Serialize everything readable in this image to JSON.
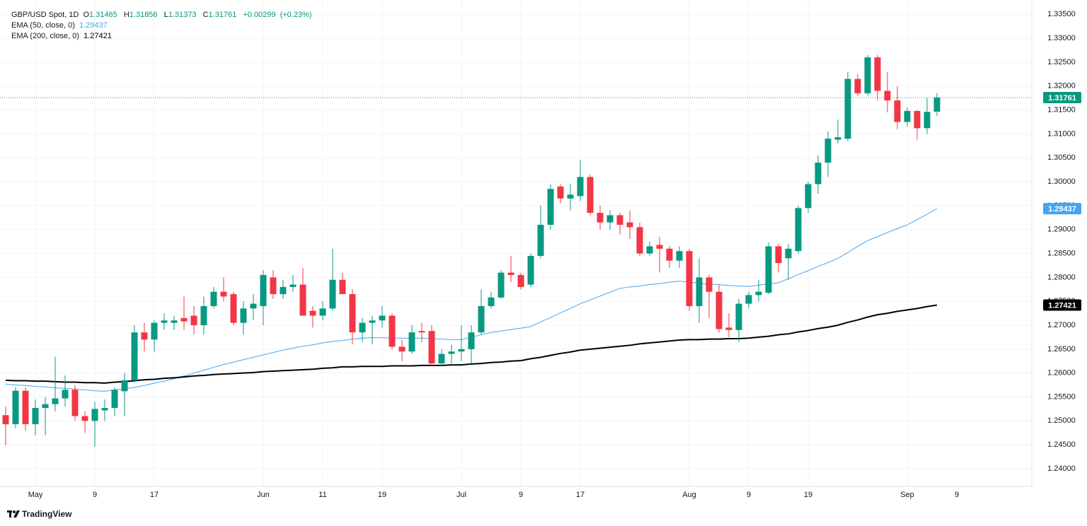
{
  "chart_data": {
    "type": "candlestick",
    "title": "GBP/USD Spot, 1D",
    "ohlc_letters": [
      "O",
      "H",
      "L",
      "C"
    ],
    "change": "+0.00299",
    "change_pct": "(+0.23%)",
    "logo": "TradingView",
    "up_color": "#089981",
    "down_color": "#f23645",
    "grid": true,
    "categories": [
      null,
      null,
      null,
      "May",
      null,
      null,
      null,
      null,
      null,
      "9",
      null,
      null,
      null,
      null,
      null,
      "17",
      null,
      null,
      null,
      null,
      null,
      null,
      null,
      null,
      null,
      null,
      "Jun",
      null,
      null,
      null,
      null,
      null,
      "11",
      null,
      null,
      null,
      null,
      null,
      "19",
      null,
      null,
      null,
      null,
      null,
      null,
      null,
      "Jul",
      null,
      null,
      null,
      null,
      null,
      "9",
      null,
      null,
      null,
      null,
      null,
      "17",
      null,
      null,
      null,
      null,
      null,
      null,
      null,
      null,
      null,
      null,
      "Aug",
      null,
      null,
      null,
      null,
      null,
      "9",
      null,
      null,
      null,
      null,
      null,
      "19",
      null,
      null,
      null,
      null,
      null,
      null,
      null,
      null,
      null,
      "Sep",
      null,
      null,
      null
    ],
    "future_categories": [
      null,
      "9"
    ],
    "open": [
      1.2512,
      1.2493,
      1.2563,
      1.2493,
      1.2527,
      1.2535,
      1.2547,
      1.2565,
      1.251,
      1.25,
      1.2522,
      1.2527,
      1.2562,
      1.2585,
      1.2685,
      1.267,
      1.2705,
      1.2705,
      1.2715,
      1.272,
      1.27,
      1.274,
      1.277,
      1.2765,
      1.2705,
      1.2735,
      1.274,
      1.28,
      1.2765,
      1.278,
      1.2785,
      1.273,
      1.272,
      1.2735,
      1.2795,
      1.2765,
      1.2685,
      1.2705,
      1.271,
      1.272,
      1.2655,
      1.2645,
      1.2688,
      1.2688,
      1.262,
      1.264,
      1.2645,
      1.265,
      1.2685,
      1.274,
      1.2758,
      1.281,
      1.2805,
      1.2785,
      1.2845,
      1.291,
      1.299,
      1.2965,
      1.297,
      1.301,
      1.2935,
      1.2915,
      1.293,
      1.2915,
      1.2905,
      1.285,
      1.2868,
      1.286,
      1.2835,
      1.2855,
      1.274,
      1.28,
      1.277,
      1.2695,
      1.269,
      1.2745,
      1.2763,
      1.2768,
      1.2865,
      1.284,
      1.2855,
      1.2945,
      1.2995,
      1.304,
      1.3088,
      1.309,
      1.3215,
      1.3185,
      1.326,
      1.319,
      1.317,
      1.3125,
      1.3148,
      1.3112,
      1.31465
    ],
    "high": [
      1.253,
      1.257,
      1.257,
      1.2545,
      1.255,
      1.2634,
      1.2595,
      1.2575,
      1.252,
      1.254,
      1.2545,
      1.257,
      1.26,
      1.27,
      1.2705,
      1.271,
      1.2725,
      1.272,
      1.276,
      1.274,
      1.276,
      1.278,
      1.28,
      1.277,
      1.275,
      1.2765,
      1.2815,
      1.2815,
      1.2795,
      1.2805,
      1.282,
      1.274,
      1.275,
      1.286,
      1.281,
      1.2775,
      1.2715,
      1.272,
      1.274,
      1.2725,
      1.267,
      1.27,
      1.2705,
      1.27,
      1.265,
      1.266,
      1.27,
      1.27,
      1.2775,
      1.277,
      1.2815,
      1.2845,
      1.281,
      1.285,
      1.295,
      1.2995,
      1.2995,
      1.2995,
      1.3045,
      1.3015,
      1.295,
      1.294,
      1.2935,
      1.294,
      1.2915,
      1.2875,
      1.2885,
      1.2865,
      1.2865,
      1.286,
      1.284,
      1.2805,
      1.2785,
      1.2725,
      1.2755,
      1.277,
      1.2795,
      1.2873,
      1.287,
      1.287,
      1.295,
      1.3,
      1.3055,
      1.3105,
      1.313,
      1.323,
      1.3225,
      1.3265,
      1.3265,
      1.323,
      1.32,
      1.3155,
      1.315,
      1.3175,
      1.31856
    ],
    "low": [
      1.2449,
      1.2485,
      1.248,
      1.247,
      1.247,
      1.252,
      1.253,
      1.25,
      1.2475,
      1.2446,
      1.25,
      1.251,
      1.251,
      1.258,
      1.2645,
      1.2645,
      1.269,
      1.269,
      1.269,
      1.268,
      1.268,
      1.2735,
      1.275,
      1.27,
      1.268,
      1.271,
      1.27,
      1.2755,
      1.2755,
      1.277,
      1.272,
      1.2695,
      1.271,
      1.273,
      1.2765,
      1.266,
      1.2665,
      1.266,
      1.2695,
      1.265,
      1.2625,
      1.264,
      1.2665,
      1.2615,
      1.2615,
      1.262,
      1.2625,
      1.262,
      1.268,
      1.2735,
      1.2755,
      1.279,
      1.2775,
      1.278,
      1.284,
      1.29,
      1.2955,
      1.294,
      1.296,
      1.293,
      1.29,
      1.29,
      1.289,
      1.288,
      1.2845,
      1.2845,
      1.281,
      1.282,
      1.282,
      1.273,
      1.2705,
      1.2715,
      1.2685,
      1.2675,
      1.2665,
      1.2735,
      1.275,
      1.2765,
      1.281,
      1.2795,
      1.285,
      1.2935,
      1.2975,
      1.301,
      1.308,
      1.3085,
      1.318,
      1.318,
      1.317,
      1.3145,
      1.311,
      1.3115,
      1.3088,
      1.31,
      1.31373
    ],
    "close": [
      1.2493,
      1.2563,
      1.2493,
      1.2527,
      1.2535,
      1.2547,
      1.2565,
      1.251,
      1.25,
      1.2525,
      1.2527,
      1.2565,
      1.2585,
      1.2685,
      1.267,
      1.2705,
      1.271,
      1.271,
      1.2708,
      1.27,
      1.274,
      1.277,
      1.276,
      1.2705,
      1.2735,
      1.2745,
      1.2805,
      1.2765,
      1.278,
      1.2785,
      1.272,
      1.272,
      1.2735,
      1.2795,
      1.2765,
      1.2685,
      1.2705,
      1.271,
      1.272,
      1.2655,
      1.2645,
      1.2685,
      1.2685,
      1.262,
      1.264,
      1.2645,
      1.265,
      1.2685,
      1.274,
      1.2758,
      1.281,
      1.2805,
      1.278,
      1.2845,
      1.291,
      1.2985,
      1.2965,
      1.2973,
      1.301,
      1.2935,
      1.2915,
      1.293,
      1.291,
      1.2905,
      1.285,
      1.2865,
      1.286,
      1.2835,
      1.2855,
      1.274,
      1.28,
      1.277,
      1.2692,
      1.269,
      1.2745,
      1.2763,
      1.277,
      1.2865,
      1.283,
      1.286,
      1.2945,
      1.2995,
      1.304,
      1.309,
      1.3093,
      1.3215,
      1.3185,
      1.326,
      1.319,
      1.317,
      1.3125,
      1.3148,
      1.3112,
      1.3146,
      1.31761
    ],
    "series": [
      {
        "name": "EMA (50, close, 0)",
        "color": "#42a5f5",
        "width": 1,
        "values": [
          1.2577,
          1.2575,
          1.2574,
          1.2572,
          1.2571,
          1.2569,
          1.2568,
          1.2566,
          1.2565,
          1.2563,
          1.2562,
          1.2565,
          1.2567,
          1.257,
          1.2574,
          1.2579,
          1.2583,
          1.2588,
          1.2594,
          1.26,
          1.2606,
          1.2612,
          1.2618,
          1.2623,
          1.2628,
          1.2633,
          1.2638,
          1.2643,
          1.2648,
          1.2652,
          1.2656,
          1.2659,
          1.2663,
          1.2666,
          1.2668,
          1.2671,
          1.2673,
          1.2674,
          1.2674,
          1.2673,
          1.2673,
          1.2673,
          1.2673,
          1.2672,
          1.2671,
          1.267,
          1.267,
          1.2675,
          1.268,
          1.2685,
          1.2688,
          1.2691,
          1.2694,
          1.2697,
          1.2707,
          1.2716,
          1.2726,
          1.2735,
          1.2745,
          1.2753,
          1.2761,
          1.2769,
          1.2777,
          1.278,
          1.2782,
          1.2785,
          1.2787,
          1.279,
          1.2792,
          1.279,
          1.2788,
          1.2786,
          1.2785,
          1.2783,
          1.2782,
          1.2781,
          1.2784,
          1.2786,
          1.2789,
          1.2797,
          1.2806,
          1.2814,
          1.2823,
          1.2831,
          1.284,
          1.2852,
          1.2865,
          1.2877,
          1.2885,
          1.2894,
          1.2902,
          1.291,
          1.2921,
          1.2932,
          1.29437
        ]
      },
      {
        "name": "EMA (200, close, 0)",
        "color": "#000000",
        "width": 2,
        "values": [
          1.2585,
          1.2584,
          1.2584,
          1.2583,
          1.2583,
          1.2582,
          1.2581,
          1.2581,
          1.258,
          1.258,
          1.2579,
          1.2581,
          1.2582,
          1.2584,
          1.2586,
          1.2587,
          1.2589,
          1.259,
          1.2592,
          1.2594,
          1.2595,
          1.2597,
          1.2598,
          1.2599,
          1.26,
          1.2601,
          1.2603,
          1.2604,
          1.2605,
          1.2606,
          1.2607,
          1.2608,
          1.261,
          1.2611,
          1.2613,
          1.2613,
          1.2614,
          1.2614,
          1.2614,
          1.2615,
          1.2615,
          1.2615,
          1.2616,
          1.2616,
          1.2616,
          1.2617,
          1.2617,
          1.2619,
          1.262,
          1.2622,
          1.2623,
          1.2625,
          1.2626,
          1.263,
          1.2633,
          1.2637,
          1.2641,
          1.2644,
          1.2648,
          1.265,
          1.2652,
          1.2654,
          1.2656,
          1.2658,
          1.2661,
          1.2663,
          1.2665,
          1.2667,
          1.2669,
          1.267,
          1.267,
          1.2671,
          1.2671,
          1.2672,
          1.2672,
          1.2673,
          1.2675,
          1.2677,
          1.268,
          1.2682,
          1.2686,
          1.2689,
          1.2693,
          1.2696,
          1.27,
          1.2706,
          1.2711,
          1.2717,
          1.2722,
          1.2725,
          1.2729,
          1.2732,
          1.2735,
          1.2739,
          1.27421
        ]
      }
    ],
    "ylim": [
      1.2363,
      1.338
    ],
    "yticks": [
      {
        "value": 1.24,
        "label": "1.24000"
      },
      {
        "value": 1.245,
        "label": "1.24500"
      },
      {
        "value": 1.25,
        "label": "1.25000"
      },
      {
        "value": 1.255,
        "label": "1.25500"
      },
      {
        "value": 1.26,
        "label": "1.26000"
      },
      {
        "value": 1.265,
        "label": "1.26500"
      },
      {
        "value": 1.27,
        "label": "1.27000"
      },
      {
        "value": 1.275,
        "label": "1.27500"
      },
      {
        "value": 1.28,
        "label": "1.28000"
      },
      {
        "value": 1.285,
        "label": "1.28500"
      },
      {
        "value": 1.29,
        "label": "1.29000"
      },
      {
        "value": 1.295,
        "label": "1.29500"
      },
      {
        "value": 1.3,
        "label": "1.30000"
      },
      {
        "value": 1.305,
        "label": "1.30500"
      },
      {
        "value": 1.31,
        "label": "1.31000"
      },
      {
        "value": 1.315,
        "label": "1.31500"
      },
      {
        "value": 1.32,
        "label": "1.32000"
      },
      {
        "value": 1.325,
        "label": "1.32500"
      },
      {
        "value": 1.33,
        "label": "1.33000"
      },
      {
        "value": 1.335,
        "label": "1.33500"
      }
    ]
  }
}
